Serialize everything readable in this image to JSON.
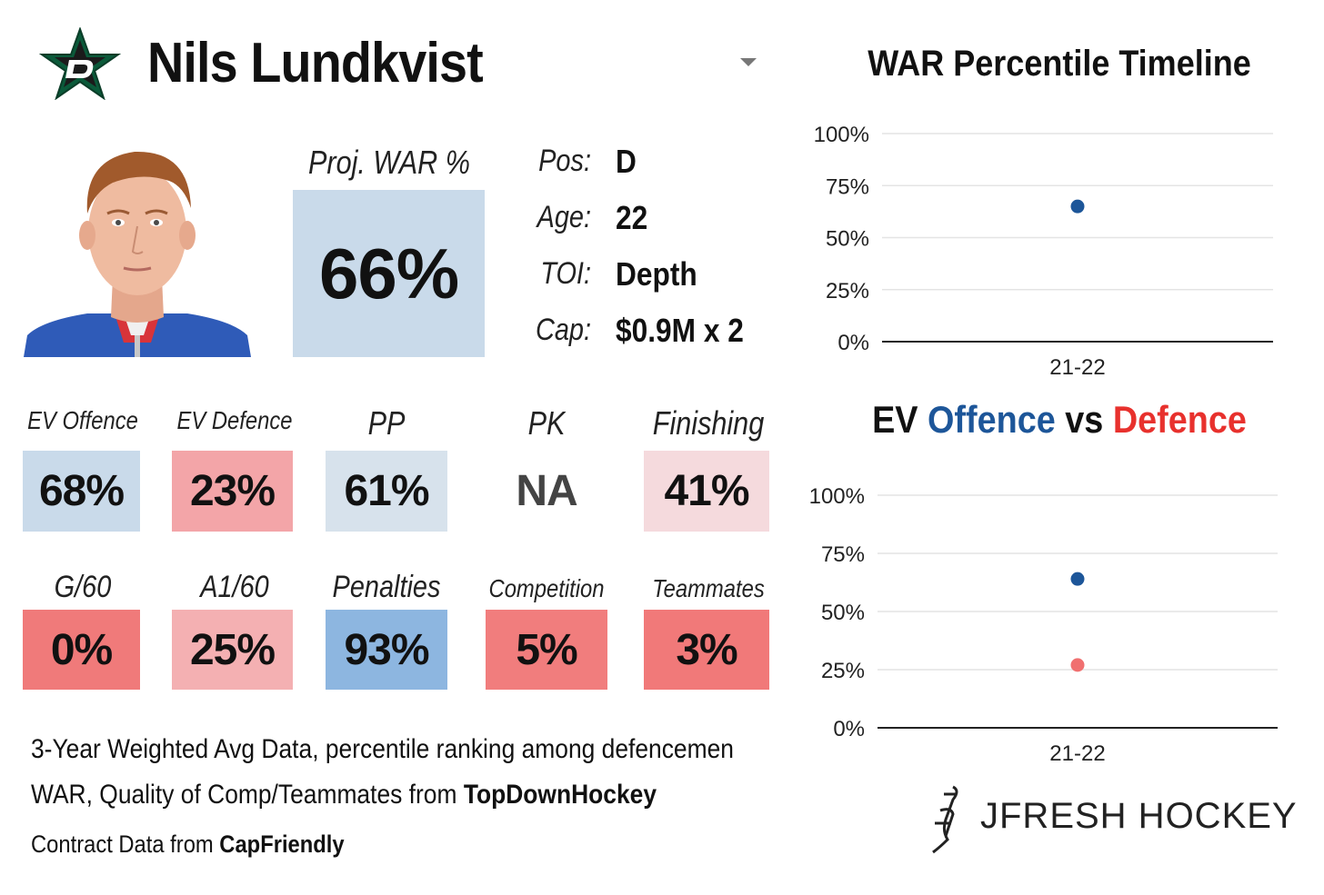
{
  "header": {
    "player_name": "Nils Lundkvist",
    "team_logo_icon": "dallas-stars-star-logo-icon",
    "dropdown_icon": "caret-down-icon"
  },
  "headshot": {
    "icon": "player-headshot-photo"
  },
  "projection": {
    "label": "Proj. WAR %",
    "value": "66%",
    "color": "#c9daea"
  },
  "info": [
    {
      "label": "Pos:",
      "value": "D"
    },
    {
      "label": "Age:",
      "value": "22"
    },
    {
      "label": "TOI:",
      "value": "Depth"
    },
    {
      "label": "Cap:",
      "value": "$0.9M x 2"
    }
  ],
  "stats_row1": [
    {
      "label": "EV Offence",
      "value": "68%",
      "color": "#c9daea"
    },
    {
      "label": "EV Defence",
      "value": "23%",
      "color": "#f3a5a8"
    },
    {
      "label": "PP",
      "value": "61%",
      "color": "#d7e2ec"
    },
    {
      "label": "PK",
      "value": "NA",
      "color": "#ffffff",
      "text_color": "#444444"
    },
    {
      "label": "Finishing",
      "value": "41%",
      "color": "#f5dadd"
    }
  ],
  "stats_row2": [
    {
      "label": "G/60",
      "value": "0%",
      "color": "#f07a7a"
    },
    {
      "label": "A1/60",
      "value": "25%",
      "color": "#f4b0b2"
    },
    {
      "label": "Penalties",
      "value": "93%",
      "color": "#8db6e0"
    },
    {
      "label": "Competition",
      "value": "5%",
      "color": "#f17d7d"
    },
    {
      "label": "Teammates",
      "value": "3%",
      "color": "#f17979"
    }
  ],
  "footnotes": {
    "line1": "3-Year Weighted Avg Data, percentile ranking among defencemen",
    "line2_prefix": "WAR, Quality of Comp/Teammates from ",
    "line2_source": "TopDownHockey",
    "line3_prefix": "Contract Data from ",
    "line3_source": "CapFriendly"
  },
  "brand": {
    "text": "JFRESH HOCKEY",
    "icon": "jfresh-logo-icon"
  },
  "chart_data": [
    {
      "type": "scatter",
      "title": "WAR Percentile Timeline",
      "categories": [
        "21-22"
      ],
      "series": [
        {
          "values": [
            65
          ],
          "color": "#1d5699"
        }
      ],
      "ylim": [
        0,
        100
      ],
      "yticks": [
        0,
        25,
        50,
        75,
        100
      ],
      "ytick_labels": [
        "0%",
        "25%",
        "50%",
        "75%",
        "100%"
      ],
      "grid": true
    },
    {
      "type": "scatter",
      "title": "EV Offence vs Defence",
      "title_parts": [
        {
          "text": "EV ",
          "color": "#111111"
        },
        {
          "text": "Offence",
          "color": "#1d5699"
        },
        {
          "text": " vs ",
          "color": "#111111"
        },
        {
          "text": "Defence",
          "color": "#e8312d"
        }
      ],
      "categories": [
        "21-22"
      ],
      "series": [
        {
          "name": "Offence",
          "values": [
            64
          ],
          "color": "#1d5699"
        },
        {
          "name": "Defence",
          "values": [
            27
          ],
          "color": "#f07070"
        }
      ],
      "ylim": [
        0,
        100
      ],
      "yticks": [
        0,
        25,
        50,
        75,
        100
      ],
      "ytick_labels": [
        "0%",
        "25%",
        "50%",
        "75%",
        "100%"
      ],
      "grid": true
    }
  ]
}
